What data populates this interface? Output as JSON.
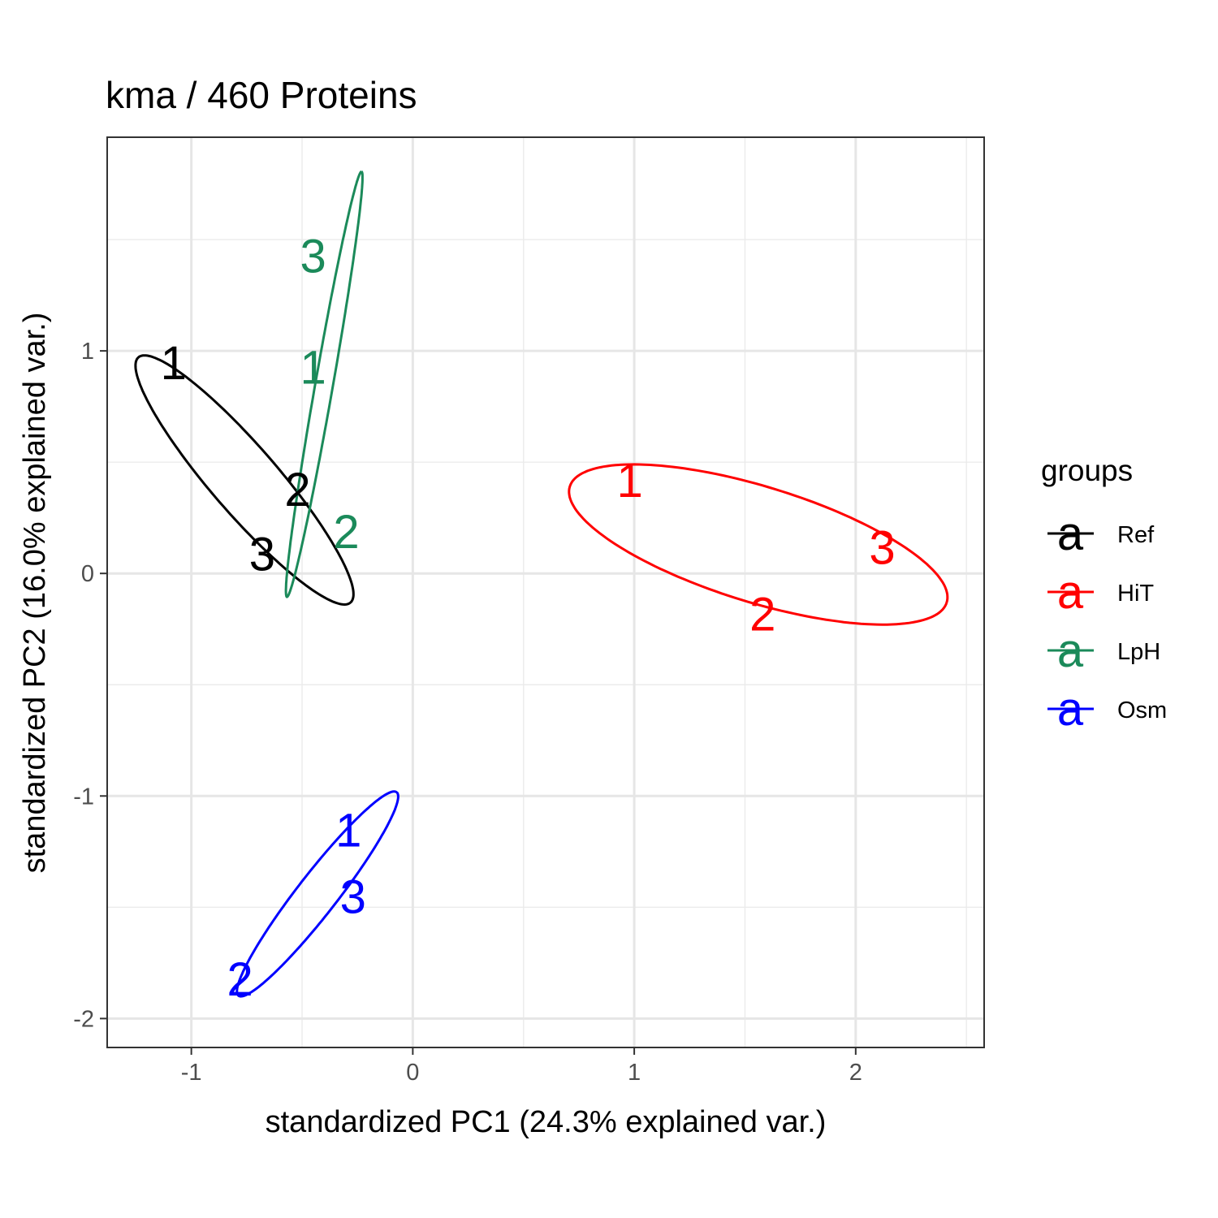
{
  "chart_data": {
    "type": "scatter",
    "title": "kma /  460  Proteins",
    "xlabel": "standardized PC1 (24.3% explained var.)",
    "ylabel": "standardized PC2 (16.0% explained var.)",
    "xlim": [
      -1.38,
      2.58
    ],
    "ylim": [
      -2.13,
      1.96
    ],
    "x_ticks": [
      -1,
      0,
      1,
      2
    ],
    "y_ticks": [
      -2,
      -1,
      0,
      1
    ],
    "grid": true,
    "legend": {
      "title": "groups",
      "position": "right",
      "glyph": "a"
    },
    "series": [
      {
        "name": "Ref",
        "color": "#000000",
        "points": [
          {
            "label": "1",
            "x": -1.08,
            "y": 0.95
          },
          {
            "label": "2",
            "x": -0.52,
            "y": 0.38
          },
          {
            "label": "3",
            "x": -0.68,
            "y": 0.09
          }
        ],
        "ellipse": {
          "cx": -0.76,
          "cy": 0.42,
          "rx": 0.73,
          "ry": 0.15,
          "angle_deg": -49
        }
      },
      {
        "name": "HiT",
        "color": "#ff0000",
        "points": [
          {
            "label": "1",
            "x": 0.98,
            "y": 0.42
          },
          {
            "label": "2",
            "x": 1.58,
            "y": -0.18
          },
          {
            "label": "3",
            "x": 2.12,
            "y": 0.12
          }
        ],
        "ellipse": {
          "cx": 1.56,
          "cy": 0.13,
          "rx": 0.89,
          "ry": 0.26,
          "angle_deg": -17
        }
      },
      {
        "name": "LpH",
        "color": "#1b8a5a",
        "points": [
          {
            "label": "3",
            "x": -0.45,
            "y": 1.43
          },
          {
            "label": "1",
            "x": -0.45,
            "y": 0.93
          },
          {
            "label": "2",
            "x": -0.3,
            "y": 0.19
          }
        ],
        "ellipse": {
          "cx": -0.4,
          "cy": 0.85,
          "rx": 0.97,
          "ry": 0.04,
          "angle_deg": 80
        }
      },
      {
        "name": "Osm",
        "color": "#0000ff",
        "points": [
          {
            "label": "1",
            "x": -0.29,
            "y": -1.15
          },
          {
            "label": "3",
            "x": -0.27,
            "y": -1.45
          },
          {
            "label": "2",
            "x": -0.78,
            "y": -1.82
          }
        ],
        "ellipse": {
          "cx": -0.43,
          "cy": -1.44,
          "rx": 0.58,
          "ry": 0.09,
          "angle_deg": 52
        }
      }
    ]
  }
}
